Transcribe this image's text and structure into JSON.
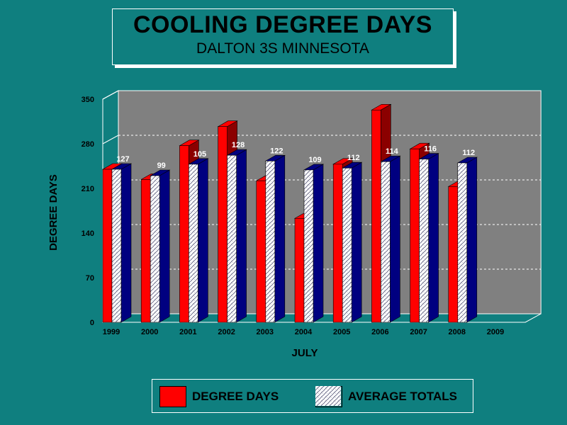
{
  "header": {
    "title": "COOLING DEGREE DAYS",
    "subtitle": "DALTON 3S MINNESOTA"
  },
  "colors": {
    "background": "#0f7f7f",
    "plot_background": "#808080",
    "degree_days_front": "#ff0000",
    "degree_days_side": "#8b0000",
    "average_front": "#ffffff",
    "average_side": "#000080"
  },
  "legend": {
    "degree_days_label": "DEGREE DAYS",
    "average_label": "AVERAGE TOTALS",
    "placement": "bottom"
  },
  "chart_data": {
    "type": "bar",
    "title": "COOLING DEGREE DAYS",
    "subtitle": "DALTON 3S MINNESOTA",
    "xlabel": "JULY",
    "ylabel": "DEGREE DAYS",
    "categories": [
      "1999",
      "2000",
      "2001",
      "2002",
      "2003",
      "2004",
      "2005",
      "2006",
      "2007",
      "2008",
      "2009"
    ],
    "ylim": [
      0,
      350
    ],
    "yticks": [
      0,
      70,
      140,
      210,
      280,
      350
    ],
    "grid": true,
    "series": [
      {
        "name": "DEGREE DAYS",
        "values": [
          240,
          224,
          277,
          307,
          222,
          163,
          248,
          333,
          272,
          213,
          null
        ]
      },
      {
        "name": "AVERAGE TOTALS",
        "values": [
          240,
          230,
          248,
          262,
          253,
          239,
          242,
          252,
          256,
          250,
          null
        ]
      }
    ],
    "data_labels": [
      "127",
      "99",
      "105",
      "128",
      "122",
      "109",
      "112",
      "114",
      "116",
      "112",
      ""
    ]
  }
}
